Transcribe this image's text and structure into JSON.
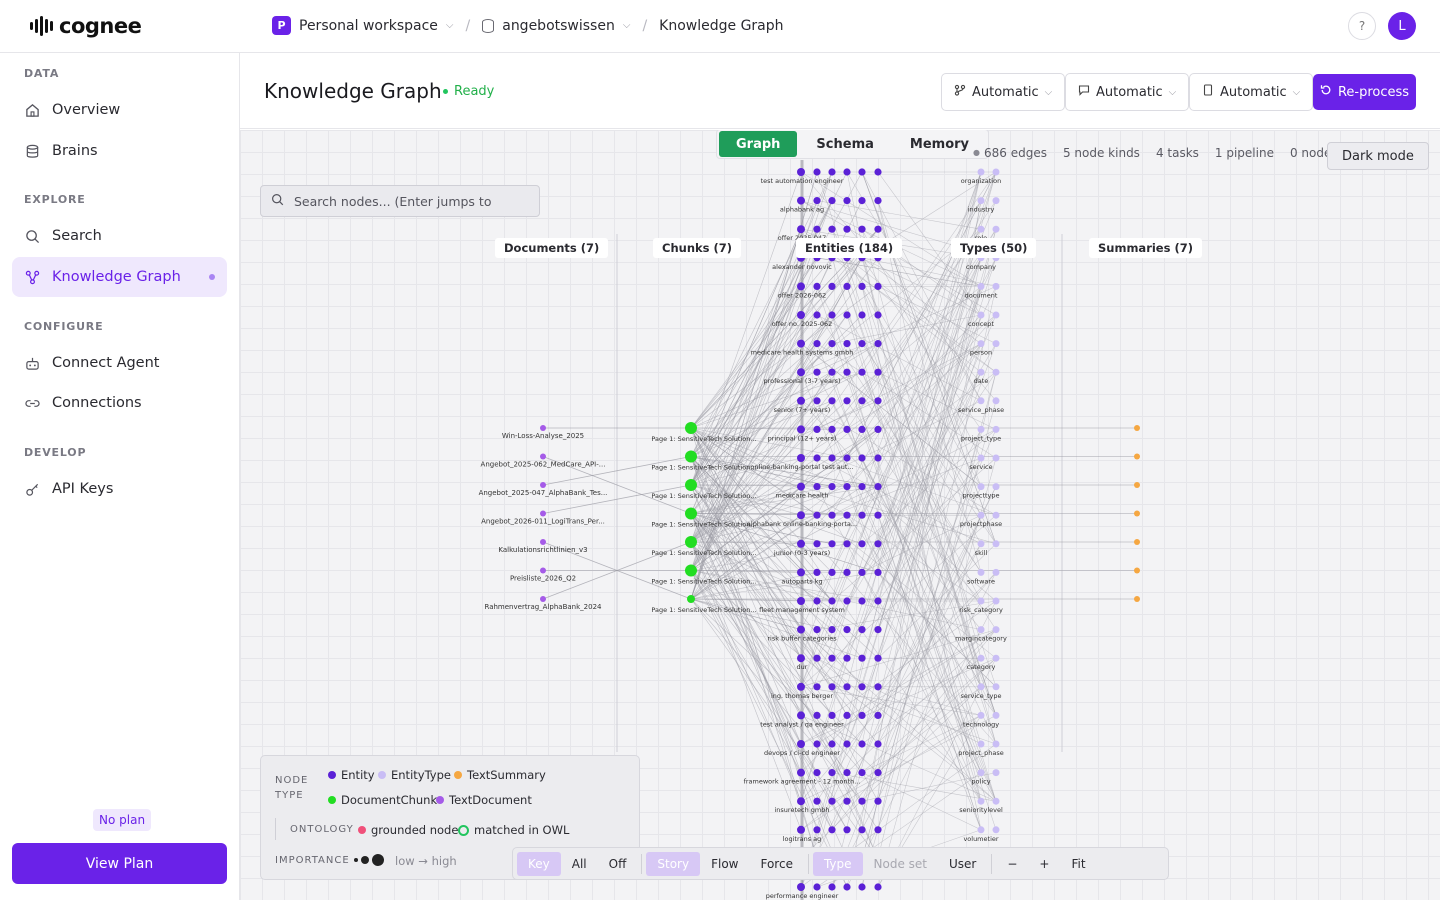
{
  "brand": {
    "name": "cognee"
  },
  "breadcrumb": {
    "workspace_initial": "P",
    "workspace": "Personal workspace",
    "dataset": "angebotswissen",
    "page": "Knowledge Graph"
  },
  "topbar": {
    "help": "?",
    "avatar_initial": "L"
  },
  "sidebar": {
    "sections": [
      {
        "title": "DATA",
        "items": [
          {
            "label": "Overview",
            "icon": "home-icon"
          },
          {
            "label": "Brains",
            "icon": "database-icon"
          }
        ]
      },
      {
        "title": "EXPLORE",
        "items": [
          {
            "label": "Search",
            "icon": "search-icon"
          },
          {
            "label": "Knowledge Graph",
            "icon": "graph-icon",
            "active": true
          }
        ]
      },
      {
        "title": "CONFIGURE",
        "items": [
          {
            "label": "Connect Agent",
            "icon": "robot-icon"
          },
          {
            "label": "Connections",
            "icon": "link-icon"
          }
        ]
      },
      {
        "title": "DEVELOP",
        "items": [
          {
            "label": "API Keys",
            "icon": "key-icon"
          }
        ]
      }
    ],
    "plan_badge": "No plan",
    "view_plan": "View Plan"
  },
  "header": {
    "title": "Knowledge Graph",
    "status": "Ready",
    "selects": [
      "Automatic",
      "Automatic",
      "Automatic"
    ],
    "reprocess": "Re-process"
  },
  "canvas": {
    "tabs": [
      "Graph",
      "Schema",
      "Memory"
    ],
    "active_tab": "Graph",
    "stats": [
      "686 edges",
      "5 node kinds",
      "4 tasks",
      "1 pipeline",
      "0 node sets"
    ],
    "dark_mode": "Dark mode",
    "search_placeholder": "Search nodes... (Enter jumps to",
    "columns": [
      "Documents (7)",
      "Chunks (7)",
      "Entities (184)",
      "Types (50)",
      "Summaries (7)"
    ],
    "documents": [
      "Win-Loss-Analyse_2025",
      "Angebot_2025-062_MedCare_API-...",
      "Angebot_2025-047_AlphaBank_Tes...",
      "Angebot_2026-011_LogiTrans_Per...",
      "Kalkulationsrichtlinien_v3",
      "Preisliste_2026_Q2",
      "Rahmenvertrag_AlphaBank_2024"
    ],
    "chunks": [
      "Page 1: SensitiveTech Solution...",
      "Page 1: SensitiveTech Solution...",
      "Page 1: SensitiveTech Solution...",
      "Page 1: SensitiveTech Solution...",
      "Page 1: SensitiveTech Solution...",
      "Page 1: SensitiveTech Solution...",
      "Page 1: SensitiveTech Solution..."
    ],
    "entity_labels": [
      "test automation engineer",
      "alphabank ag",
      "offer 2025-047",
      "alexander novovic",
      "offer 2026-062",
      "offer no. 2025-062",
      "medicare health systems gmbh",
      "professional (3-7 years)",
      "senior (7+ years)",
      "principal (12+ years)",
      "online-banking-portal test aut...",
      "medicare health",
      "alphabank online-banking-porta...",
      "junior (0-3 years)",
      "autoparts kg",
      "fleet management system",
      "risk buffer categories",
      "dur",
      "ing. thomas berger",
      "test analyst / qa engineer",
      "devops / ci-cd engineer",
      "framework agreement - 12 month...",
      "insuretech gmbh",
      "logitrans ag",
      "",
      "performance engineer"
    ],
    "type_labels": [
      "organization",
      "industry",
      "role",
      "company",
      "document",
      "concept",
      "person",
      "date",
      "service_phase",
      "project_type",
      "service",
      "projecttype",
      "projectphase",
      "skill",
      "software",
      "risk_category",
      "margincategory",
      "category",
      "service_type",
      "technology",
      "project_phase",
      "policy",
      "senioritylevel",
      "volumetier"
    ],
    "colors": {
      "entity": "#5b21d6",
      "entity_type": "#c9bdf5",
      "text_summary": "#f5a742",
      "document_chunk": "#22dd22",
      "text_document": "#a55be8",
      "ontology_grounded": "#f0507a",
      "ontology_matched": "#22c55e",
      "accent": "#6a22e8"
    },
    "legend": {
      "node_type_label": "NODE TYPE",
      "node_types": [
        "Entity",
        "EntityType",
        "TextSummary",
        "DocumentChunk",
        "TextDocument"
      ],
      "ontology_label": "ONTOLOGY",
      "ontology": [
        "grounded node",
        "matched in OWL"
      ],
      "importance_label": "IMPORTANCE",
      "importance_range": "low → high"
    },
    "toolbar": [
      "Key",
      "All",
      "Off",
      "Story",
      "Flow",
      "Force",
      "Type",
      "Node set",
      "User",
      "−",
      "+",
      "Fit"
    ]
  }
}
